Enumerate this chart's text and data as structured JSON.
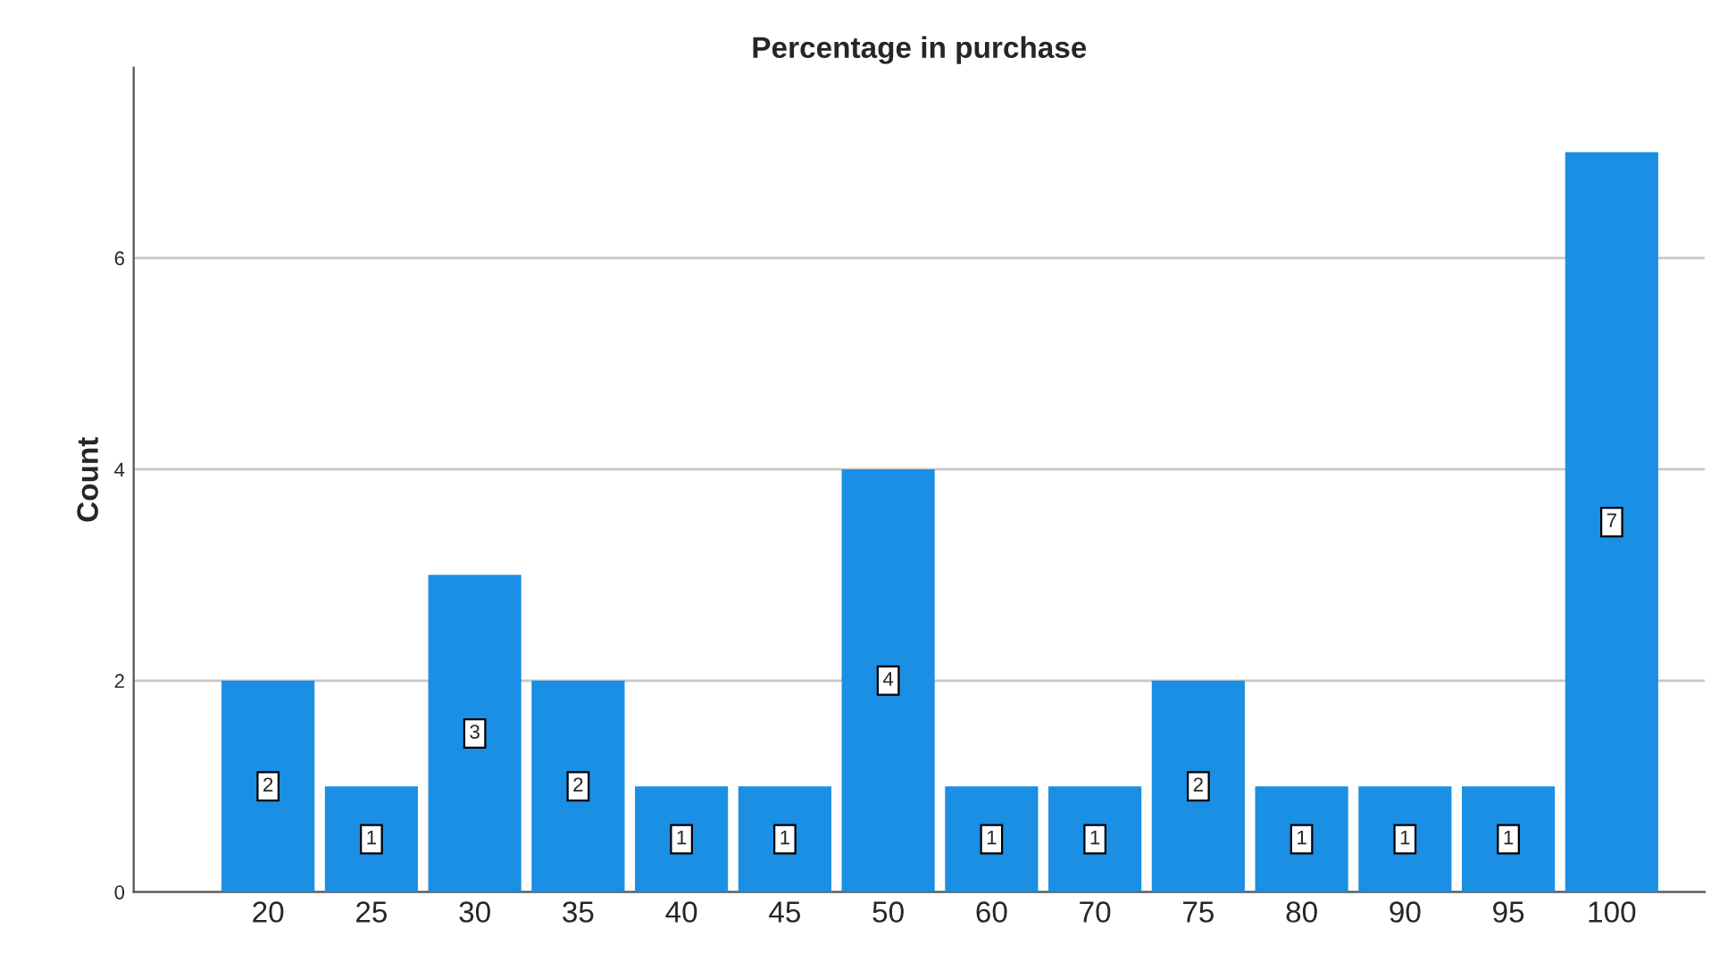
{
  "chart_data": {
    "type": "bar",
    "title": "Percentage in purchase",
    "ylabel": "Count",
    "categories": [
      "20",
      "25",
      "30",
      "35",
      "40",
      "45",
      "50",
      "60",
      "70",
      "75",
      "80",
      "90",
      "95",
      "100"
    ],
    "values": [
      2,
      1,
      3,
      2,
      1,
      1,
      4,
      1,
      1,
      2,
      1,
      1,
      1,
      7
    ],
    "color": "#1a8fe3",
    "ylim": [
      0,
      7.8
    ],
    "yticks": [
      0,
      2,
      4,
      6
    ],
    "grid": "y",
    "data_labels": true
  }
}
